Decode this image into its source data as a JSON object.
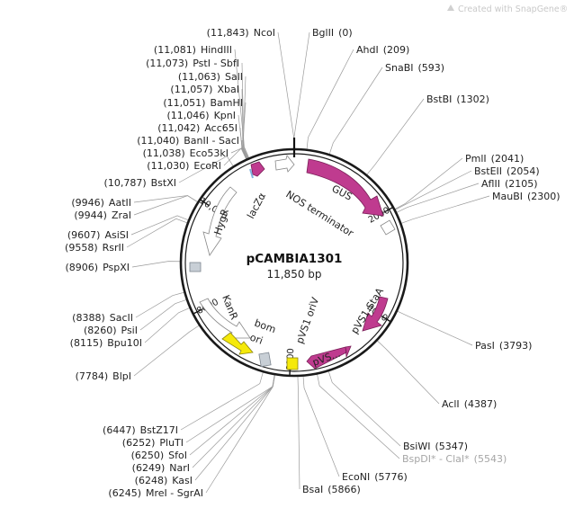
{
  "map": {
    "name": "pCAMBIA1301",
    "size_label": "11,850 bp",
    "total_bp": 11850,
    "brand": "Created with SnapGene®",
    "backbone_color": "#1a1a1a",
    "feature_color": "#bf3b8f",
    "ori_color": "#f5e90a",
    "gray_box_color": "#c8cfd6"
  },
  "ticks": [
    {
      "bp": 2000,
      "label": "2000"
    },
    {
      "bp": 4000,
      "label": "4000"
    },
    {
      "bp": 6000,
      "label": "6000"
    },
    {
      "bp": 8000,
      "label": "8000"
    },
    {
      "bp": 10000,
      "label": "10,000"
    }
  ],
  "sites": [
    {
      "name": "NcoI",
      "pos": "(11,843)",
      "bp": 11843,
      "side": "L",
      "gray": false
    },
    {
      "name": "HindIII",
      "pos": "(11,081)",
      "bp": 11081,
      "side": "L",
      "gray": false
    },
    {
      "name": "PstI - SbfI",
      "pos": "(11,073)",
      "bp": 11073,
      "side": "L",
      "gray": false
    },
    {
      "name": "SalI",
      "pos": "(11,063)",
      "bp": 11063,
      "side": "L",
      "gray": false
    },
    {
      "name": "XbaI",
      "pos": "(11,057)",
      "bp": 11057,
      "side": "L",
      "gray": false
    },
    {
      "name": "BamHI",
      "pos": "(11,051)",
      "bp": 11051,
      "side": "L",
      "gray": false
    },
    {
      "name": "KpnI",
      "pos": "(11,046)",
      "bp": 11046,
      "side": "L",
      "gray": false
    },
    {
      "name": "Acc65I",
      "pos": "(11,042)",
      "bp": 11042,
      "side": "L",
      "gray": false
    },
    {
      "name": "BanII - SacI",
      "pos": "(11,040)",
      "bp": 11040,
      "side": "L",
      "gray": false
    },
    {
      "name": "Eco53kI",
      "pos": "(11,038)",
      "bp": 11038,
      "side": "L",
      "gray": false
    },
    {
      "name": "EcoRI",
      "pos": "(11,030)",
      "bp": 11030,
      "side": "L",
      "gray": false
    },
    {
      "name": "BstXI",
      "pos": "(10,787)",
      "bp": 10787,
      "side": "L",
      "gray": false
    },
    {
      "name": "AatII",
      "pos": "(9946)",
      "bp": 9946,
      "side": "L",
      "gray": false
    },
    {
      "name": "ZraI",
      "pos": "(9944)",
      "bp": 9944,
      "side": "L",
      "gray": false
    },
    {
      "name": "AsiSI",
      "pos": "(9607)",
      "bp": 9607,
      "side": "L",
      "gray": false
    },
    {
      "name": "RsrII",
      "pos": "(9558)",
      "bp": 9558,
      "side": "L",
      "gray": false
    },
    {
      "name": "PspXI",
      "pos": "(8906)",
      "bp": 8906,
      "side": "L",
      "gray": false
    },
    {
      "name": "SacII",
      "pos": "(8388)",
      "bp": 8388,
      "side": "L",
      "gray": false
    },
    {
      "name": "PsiI",
      "pos": "(8260)",
      "bp": 8260,
      "side": "L",
      "gray": false
    },
    {
      "name": "Bpu10I",
      "pos": "(8115)",
      "bp": 8115,
      "side": "L",
      "gray": false
    },
    {
      "name": "BlpI",
      "pos": "(7784)",
      "bp": 7784,
      "side": "L",
      "gray": false
    },
    {
      "name": "BstZ17I",
      "pos": "(6447)",
      "bp": 6447,
      "side": "L",
      "gray": false
    },
    {
      "name": "PluTI",
      "pos": "(6252)",
      "bp": 6252,
      "side": "L",
      "gray": false
    },
    {
      "name": "SfoI",
      "pos": "(6250)",
      "bp": 6250,
      "side": "L",
      "gray": false
    },
    {
      "name": "NarI",
      "pos": "(6249)",
      "bp": 6249,
      "side": "L",
      "gray": false
    },
    {
      "name": "KasI",
      "pos": "(6248)",
      "bp": 6248,
      "side": "L",
      "gray": false
    },
    {
      "name": "MreI - SgrAI",
      "pos": "(6245)",
      "bp": 6245,
      "side": "L",
      "gray": false
    },
    {
      "name": "BglII",
      "pos": "(0)",
      "bp": 0,
      "side": "R",
      "gray": false
    },
    {
      "name": "AhdI",
      "pos": "(209)",
      "bp": 209,
      "side": "R",
      "gray": false
    },
    {
      "name": "SnaBI",
      "pos": "(593)",
      "bp": 593,
      "side": "R",
      "gray": false
    },
    {
      "name": "BstBI",
      "pos": "(1302)",
      "bp": 1302,
      "side": "R",
      "gray": false
    },
    {
      "name": "PmlI",
      "pos": "(2041)",
      "bp": 2041,
      "side": "R",
      "gray": false
    },
    {
      "name": "BstEII",
      "pos": "(2054)",
      "bp": 2054,
      "side": "R",
      "gray": false
    },
    {
      "name": "AflII",
      "pos": "(2105)",
      "bp": 2105,
      "side": "R",
      "gray": false
    },
    {
      "name": "MauBI",
      "pos": "(2300)",
      "bp": 2300,
      "side": "R",
      "gray": false
    },
    {
      "name": "PasI",
      "pos": "(3793)",
      "bp": 3793,
      "side": "R",
      "gray": false
    },
    {
      "name": "AclI",
      "pos": "(4387)",
      "bp": 4387,
      "side": "R",
      "gray": false
    },
    {
      "name": "BsiWI",
      "pos": "(5347)",
      "bp": 5347,
      "side": "R",
      "gray": false
    },
    {
      "name": "BspDI* - ClaI*",
      "pos": "(5543)",
      "bp": 5543,
      "side": "R",
      "gray": true
    },
    {
      "name": "EcoNI",
      "pos": "(5776)",
      "bp": 5776,
      "side": "R",
      "gray": false
    },
    {
      "name": "BsaI",
      "pos": "(5866)",
      "bp": 5866,
      "side": "R",
      "gray": false
    }
  ],
  "features": [
    {
      "name": "GUS",
      "label": "GUS"
    },
    {
      "name": "NOS terminator",
      "label": "NOS terminator"
    },
    {
      "name": "lacZα",
      "label": "lacZα"
    },
    {
      "name": "HygR",
      "label": "HygR"
    },
    {
      "name": "pVS1 StaA",
      "label": "pVS1 StaA"
    },
    {
      "name": "pVS1 oriV",
      "label": "pVS1 oriV"
    },
    {
      "name": "pVS...",
      "label": "pVS..."
    },
    {
      "name": "KanR",
      "label": "KanR"
    },
    {
      "name": "bom",
      "label": "bom"
    },
    {
      "name": "ori",
      "label": "ori"
    }
  ]
}
